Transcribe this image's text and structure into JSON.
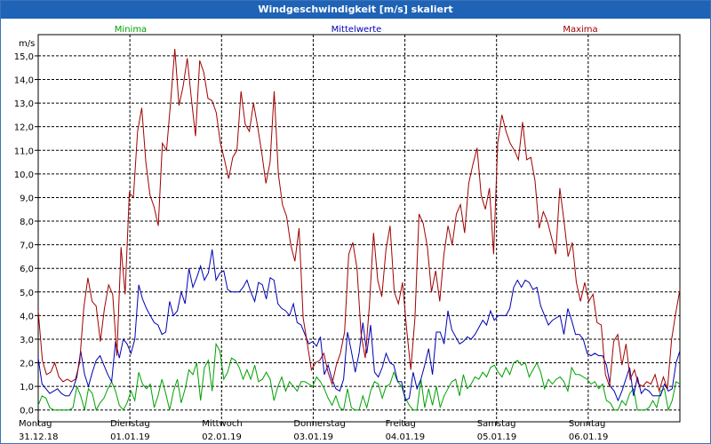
{
  "window": {
    "title": "Windgeschwindigkeit [m/s] skaliert"
  },
  "chart_data": {
    "type": "line",
    "title": "Windgeschwindigkeit [m/s] skaliert",
    "ylabel": "m/s",
    "ylim": [
      -0.5,
      15.9
    ],
    "yticks": [
      "0,0",
      "1,0",
      "2,0",
      "3,0",
      "4,0",
      "5,0",
      "6,0",
      "7,0",
      "8,0",
      "9,0",
      "10,0",
      "11,0",
      "12,0",
      "13,0",
      "14,0",
      "15,0"
    ],
    "ytick_values": [
      0,
      1,
      2,
      3,
      4,
      5,
      6,
      7,
      8,
      9,
      10,
      11,
      12,
      13,
      14,
      15
    ],
    "days": [
      {
        "day": "Montag",
        "date": "31.12.18"
      },
      {
        "day": "Dienstag",
        "date": "01.01.19"
      },
      {
        "day": "Mittwoch",
        "date": "02.01.19"
      },
      {
        "day": "Donnerstag",
        "date": "03.01.19"
      },
      {
        "day": "Freitag",
        "date": "04.01.19"
      },
      {
        "day": "Samstag",
        "date": "05.01.19"
      },
      {
        "day": "Sonntag",
        "date": "06.01.19"
      }
    ],
    "grid": true,
    "series": [
      {
        "name": "Minima",
        "color": "#00a000",
        "values": [
          0.2,
          0.6,
          0.5,
          0.1,
          0.0,
          0.0,
          0.0,
          0.0,
          0.0,
          0.1,
          1.0,
          0.6,
          0.0,
          0.9,
          0.7,
          0.0,
          0.3,
          0.5,
          0.9,
          1.2,
          0.8,
          0.2,
          0.0,
          0.3,
          0.8,
          0.4,
          1.6,
          1.1,
          0.9,
          1.1,
          0.1,
          0.6,
          1.3,
          0.7,
          0.0,
          0.8,
          1.3,
          0.3,
          0.9,
          1.7,
          1.5,
          2.0,
          0.4,
          1.8,
          2.1,
          0.8,
          2.8,
          2.5,
          1.3,
          1.6,
          2.2,
          2.1,
          1.8,
          1.3,
          1.7,
          1.3,
          1.9,
          1.2,
          1.3,
          1.6,
          1.3,
          0.4,
          1.0,
          1.4,
          0.8,
          1.2,
          1.0,
          0.8,
          1.2,
          1.2,
          1.1,
          1.0,
          1.4,
          1.2,
          0.9,
          0.5,
          0.2,
          0.6,
          0.1,
          0.0,
          0.9,
          0.1,
          0.0,
          0.0,
          0.6,
          0.1,
          0.8,
          1.2,
          1.1,
          0.5,
          1.0,
          1.1,
          1.6,
          1.2,
          1.0,
          0.5,
          0.2,
          0.0,
          0.0,
          1.3,
          0.1,
          0.9,
          0.2,
          1.0,
          0.1,
          0.6,
          0.9,
          1.2,
          1.3,
          0.6,
          1.5,
          0.9,
          1.1,
          1.4,
          1.3,
          1.6,
          1.4,
          1.8,
          1.9,
          1.6,
          1.4,
          1.8,
          1.5,
          2.0,
          2.1,
          1.9,
          2.0,
          1.4,
          1.7,
          2.0,
          1.6,
          0.9,
          1.3,
          1.1,
          1.3,
          1.4,
          1.2,
          0.8,
          1.8,
          1.5,
          1.5,
          1.4,
          1.3,
          1.1,
          1.2,
          0.9,
          1.1,
          0.4,
          0.3,
          0.0,
          0.0,
          0.4,
          0.2,
          0.7,
          0.9,
          0.0,
          0.0,
          0.0,
          0.1,
          0.4,
          0.1,
          0.8,
          0.9,
          0.0,
          0.4,
          1.2,
          1.1
        ]
      },
      {
        "name": "Mittelwerte",
        "color": "#0000b4",
        "values": [
          2.2,
          1.1,
          0.9,
          0.7,
          0.8,
          0.9,
          0.7,
          0.6,
          0.6,
          0.9,
          1.4,
          2.5,
          1.5,
          1.0,
          1.6,
          2.1,
          2.3,
          1.9,
          1.5,
          1.2,
          2.9,
          2.2,
          3.0,
          2.8,
          2.4,
          3.0,
          5.3,
          4.7,
          4.3,
          4.0,
          3.7,
          3.6,
          3.2,
          3.3,
          4.6,
          4.0,
          4.2,
          5.0,
          4.5,
          6.0,
          5.2,
          5.6,
          6.1,
          5.5,
          5.8,
          6.8,
          5.5,
          5.8,
          5.9,
          5.1,
          5.0,
          5.0,
          5.0,
          5.2,
          5.5,
          5.0,
          4.6,
          5.4,
          5.3,
          4.7,
          5.6,
          5.5,
          4.5,
          4.3,
          4.2,
          4.0,
          4.5,
          3.7,
          3.6,
          3.2,
          2.8,
          2.9,
          2.7,
          3.1,
          1.5,
          1.9,
          1.3,
          0.9,
          0.8,
          1.3,
          3.3,
          2.5,
          1.6,
          2.4,
          3.7,
          2.4,
          3.6,
          1.6,
          1.4,
          1.8,
          2.4,
          2.0,
          1.9,
          1.2,
          1.2,
          0.4,
          0.5,
          1.6,
          0.9,
          1.3,
          1.9,
          2.6,
          1.5,
          3.3,
          3.3,
          2.8,
          4.2,
          3.4,
          3.1,
          2.8,
          2.9,
          3.1,
          3.0,
          3.2,
          3.5,
          3.8,
          3.6,
          4.2,
          3.8,
          4.0,
          4.0,
          4.0,
          4.3,
          5.2,
          5.5,
          5.2,
          5.5,
          5.4,
          5.1,
          5.2,
          4.4,
          4.0,
          3.6,
          3.8,
          3.9,
          4.0,
          3.2,
          4.3,
          3.8,
          3.2,
          3.2,
          3.0,
          2.4,
          2.3,
          2.4,
          2.3,
          2.3,
          1.9,
          1.0,
          0.8,
          0.4,
          0.8,
          1.3,
          1.8,
          0.6,
          1.4,
          0.7,
          0.9,
          0.8,
          0.6,
          0.6,
          0.6,
          1.1,
          0.8,
          0.9,
          2.0,
          2.5
        ]
      },
      {
        "name": "Maxima",
        "color": "#a00000",
        "values": [
          4.2,
          2.1,
          1.5,
          1.6,
          2.0,
          1.4,
          1.2,
          1.3,
          1.2,
          1.3,
          2.0,
          4.3,
          5.6,
          4.6,
          4.4,
          2.9,
          4.3,
          5.3,
          4.9,
          2.3,
          6.9,
          4.9,
          9.2,
          9.0,
          11.8,
          12.8,
          10.5,
          9.1,
          8.6,
          7.8,
          11.3,
          11.0,
          13.1,
          15.3,
          12.9,
          13.7,
          14.9,
          13.2,
          11.6,
          14.8,
          14.3,
          13.2,
          13.1,
          12.6,
          11.3,
          10.6,
          9.8,
          10.7,
          11.0,
          13.5,
          12.1,
          11.8,
          13.0,
          12.0,
          10.9,
          9.6,
          10.5,
          13.5,
          10.0,
          8.7,
          8.2,
          7.0,
          6.3,
          7.7,
          3.9,
          2.8,
          1.7,
          2.0,
          2.1,
          2.4,
          1.6,
          1.1,
          1.9,
          2.4,
          3.3,
          6.6,
          7.1,
          6.0,
          3.2,
          2.2,
          4.4,
          7.5,
          5.5,
          4.8,
          6.8,
          7.8,
          5.0,
          4.5,
          5.4,
          3.4,
          1.7,
          3.9,
          8.3,
          7.9,
          6.9,
          5.0,
          5.9,
          4.6,
          6.6,
          7.8,
          7.0,
          8.3,
          8.7,
          7.5,
          9.6,
          10.4,
          11.1,
          9.1,
          8.5,
          9.4,
          6.6,
          11.3,
          12.5,
          11.8,
          11.3,
          11.0,
          10.6,
          12.2,
          10.6,
          10.7,
          9.7,
          7.7,
          8.4,
          8.0,
          7.3,
          6.6,
          9.4,
          8.0,
          6.5,
          7.1,
          5.4,
          4.6,
          5.4,
          4.6,
          4.9,
          3.7,
          3.6,
          1.5,
          1.0,
          2.9,
          3.2,
          1.9,
          2.8,
          1.3,
          1.7,
          1.1,
          1.0,
          1.2,
          1.1,
          1.5,
          0.8,
          1.4,
          0.9,
          3.0,
          4.1,
          5.1
        ]
      }
    ]
  }
}
